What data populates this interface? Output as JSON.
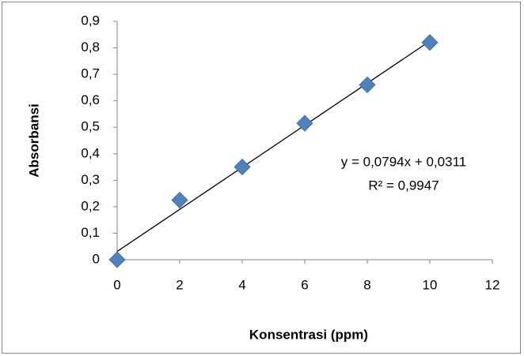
{
  "chart_data": {
    "type": "scatter",
    "x_label": "Konsentrasi (ppm)",
    "y_label": "Absorbansi",
    "x": [
      0,
      2,
      4,
      6,
      8,
      10
    ],
    "values": [
      0,
      0.225,
      0.35,
      0.515,
      0.66,
      0.82
    ],
    "color": "#4f81bd",
    "xlim": [
      0,
      12
    ],
    "xticks": [
      0,
      2,
      4,
      6,
      8,
      10,
      12
    ],
    "ylim": [
      0,
      0.9
    ],
    "yticks": [
      0,
      {
        "value": 0.1,
        "label": "0,1"
      },
      {
        "value": 0.2,
        "label": "0,2"
      },
      {
        "value": 0.3,
        "label": "0,3"
      },
      {
        "value": 0.4,
        "label": "0,4"
      },
      {
        "value": 0.5,
        "label": "0,5"
      },
      {
        "value": 0.6,
        "label": "0,6"
      },
      {
        "value": 0.7,
        "label": "0,7"
      },
      {
        "value": 0.8,
        "label": "0,8"
      },
      {
        "value": 0.9,
        "label": "0,9"
      }
    ],
    "grid": false,
    "trendline": {
      "slope": 0.0794,
      "intercept": 0.0311,
      "equation": "y = 0,0794x + 0,0311",
      "r2": "R² = 0,9947"
    }
  }
}
